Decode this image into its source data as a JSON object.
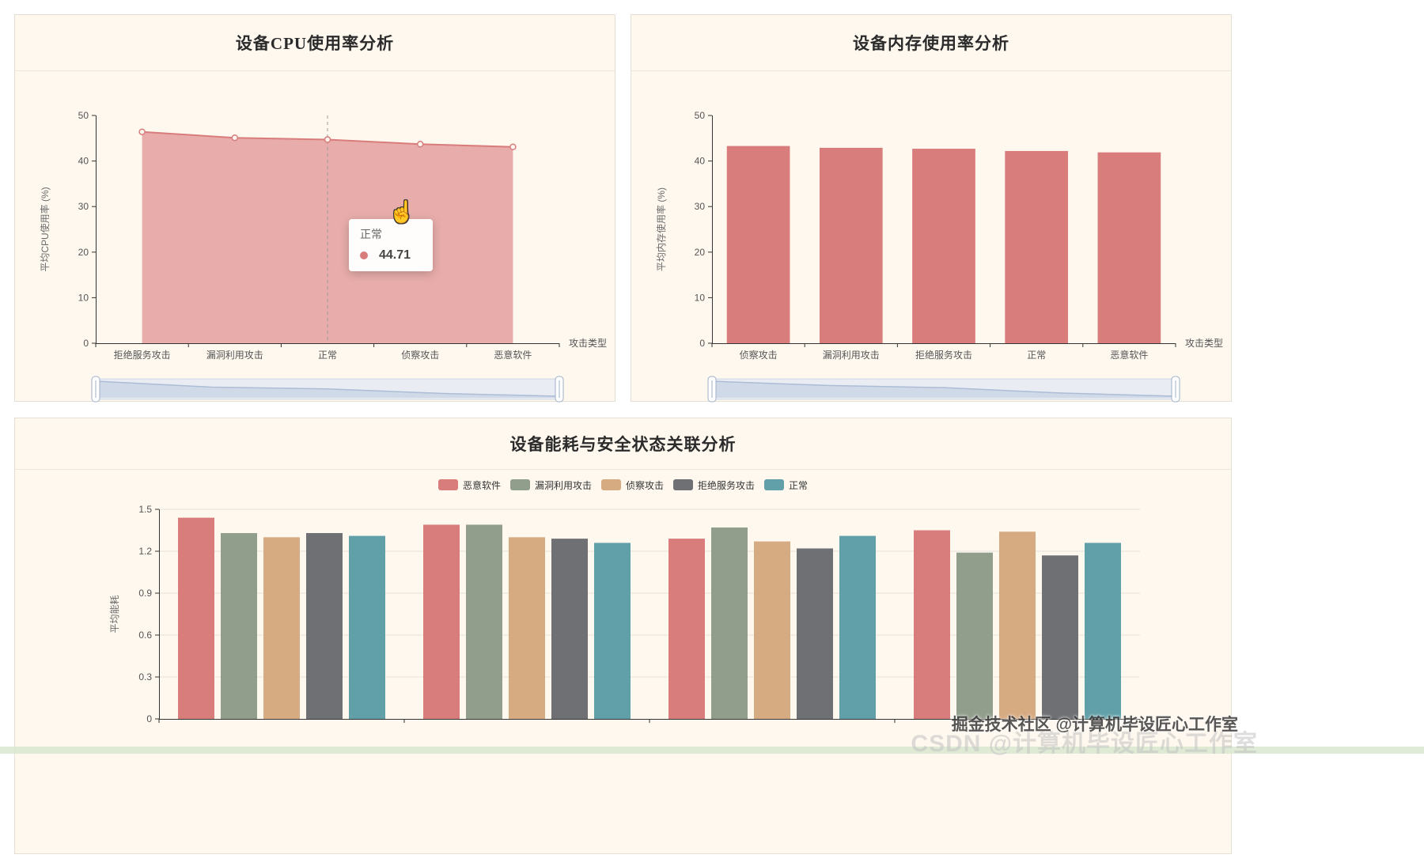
{
  "watermarks": {
    "primary": "掘金技术社区 @计算机毕设匠心工作室",
    "secondary": "CSDN @计算机毕设匠心工作室"
  },
  "chart_data": [
    {
      "type": "area",
      "title": "设备CPU使用率分析",
      "ylabel": "平均CPU使用率 (%)",
      "xname": "攻击类型",
      "ylim": [
        0,
        50
      ],
      "yticks": [
        0,
        10,
        20,
        30,
        40,
        50
      ],
      "categories": [
        "拒绝服务攻击",
        "漏洞利用攻击",
        "正常",
        "侦察攻击",
        "恶意软件"
      ],
      "values": [
        46.4,
        45.1,
        44.71,
        43.7,
        43.1
      ],
      "color": "#d87c7c",
      "area_opacity": 0.6,
      "grid": false,
      "has_datazoom": true,
      "tooltip": {
        "label": "正常",
        "value": "44.71",
        "category_index": 2
      }
    },
    {
      "type": "bar",
      "title": "设备内存使用率分析",
      "ylabel": "平均内存使用率 (%)",
      "xname": "攻击类型",
      "ylim": [
        0,
        50
      ],
      "yticks": [
        0,
        10,
        20,
        30,
        40,
        50
      ],
      "categories": [
        "侦察攻击",
        "漏洞利用攻击",
        "拒绝服务攻击",
        "正常",
        "恶意软件"
      ],
      "values": [
        43.3,
        42.9,
        42.7,
        42.2,
        41.9
      ],
      "color": "#d87c7c",
      "grid": false,
      "has_datazoom": true
    },
    {
      "type": "grouped-bar",
      "title": "设备能耗与安全状态关联分析",
      "ylabel": "平均能耗",
      "ylim": [
        0,
        1.5
      ],
      "yticks": [
        0,
        0.3,
        0.6,
        0.9,
        1.2,
        1.5
      ],
      "categories": [
        "",
        "",
        "",
        ""
      ],
      "grid": true,
      "legend_position": "top-center",
      "series": [
        {
          "name": "恶意软件",
          "color": "#d87c7c",
          "values": [
            1.44,
            1.39,
            1.29,
            1.35
          ]
        },
        {
          "name": "漏洞利用攻击",
          "color": "#919e8b",
          "values": [
            1.33,
            1.39,
            1.37,
            1.19
          ]
        },
        {
          "name": "侦察攻击",
          "color": "#d7ab82",
          "values": [
            1.3,
            1.3,
            1.27,
            1.34
          ]
        },
        {
          "name": "拒绝服务攻击",
          "color": "#6e7074",
          "values": [
            1.33,
            1.29,
            1.22,
            1.17
          ]
        },
        {
          "name": "正常",
          "color": "#61a0a8",
          "values": [
            1.31,
            1.26,
            1.31,
            1.26
          ]
        }
      ]
    }
  ]
}
